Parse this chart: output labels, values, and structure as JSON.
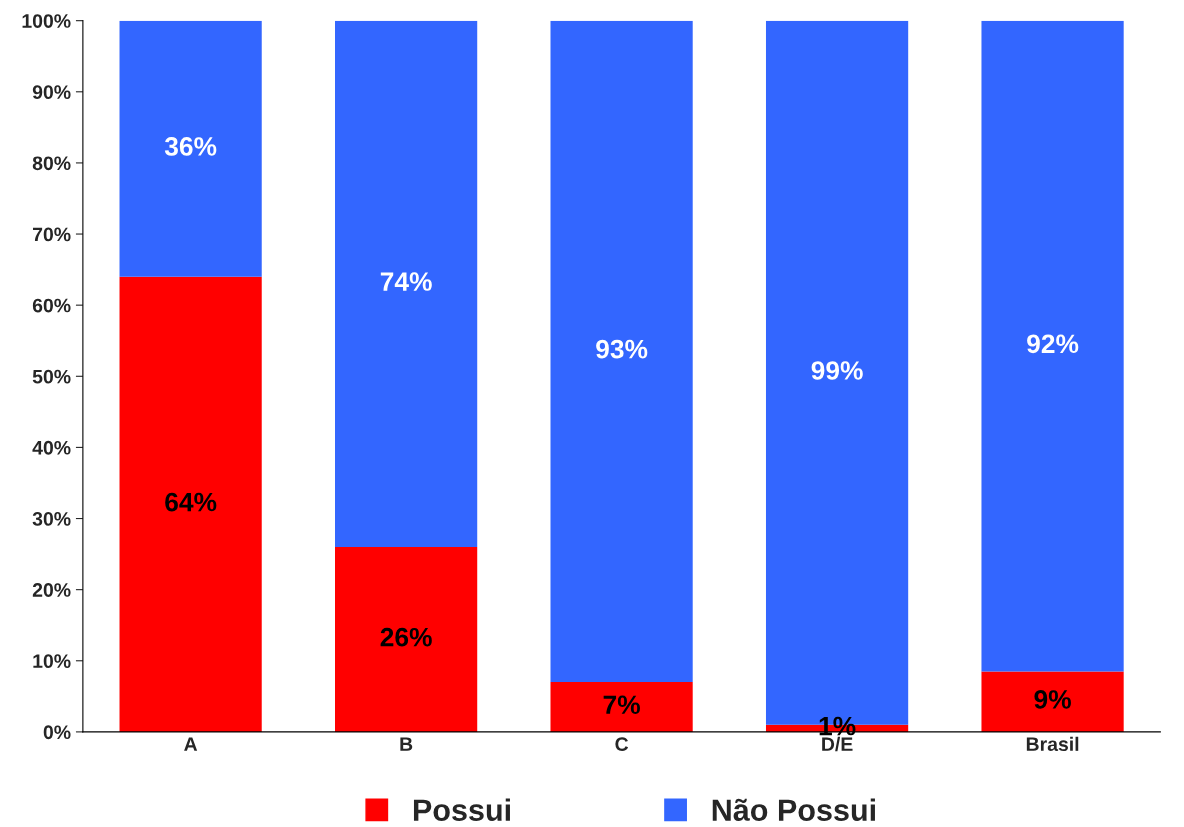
{
  "chart_data": {
    "type": "bar",
    "stacked": true,
    "categories": [
      "A",
      "B",
      "C",
      "D/E",
      "Brasil"
    ],
    "series": [
      {
        "name": "Possui",
        "color": "#ff0000",
        "values": [
          64,
          26,
          7,
          1,
          8.5
        ],
        "value_labels": [
          "64%",
          "26%",
          "7%",
          "1%",
          "9%"
        ]
      },
      {
        "name": "Não Possui",
        "color": "#3366ff",
        "values": [
          36,
          74,
          93,
          99,
          91.5
        ],
        "value_labels": [
          "36%",
          "74%",
          "93%",
          "99%",
          "92%"
        ]
      }
    ],
    "ylim": [
      0,
      100
    ],
    "yticks": [
      {
        "value": 0,
        "label": "0%"
      },
      {
        "value": 10,
        "label": "10%"
      },
      {
        "value": 20,
        "label": "20%"
      },
      {
        "value": 30,
        "label": "30%"
      },
      {
        "value": 40,
        "label": "40%"
      },
      {
        "value": 50,
        "label": "50%"
      },
      {
        "value": 60,
        "label": "60%"
      },
      {
        "value": 70,
        "label": "70%"
      },
      {
        "value": 80,
        "label": "80%"
      },
      {
        "value": 90,
        "label": "90%"
      },
      {
        "value": 100,
        "label": "100%"
      }
    ],
    "grid": false,
    "legend": "bottom"
  }
}
